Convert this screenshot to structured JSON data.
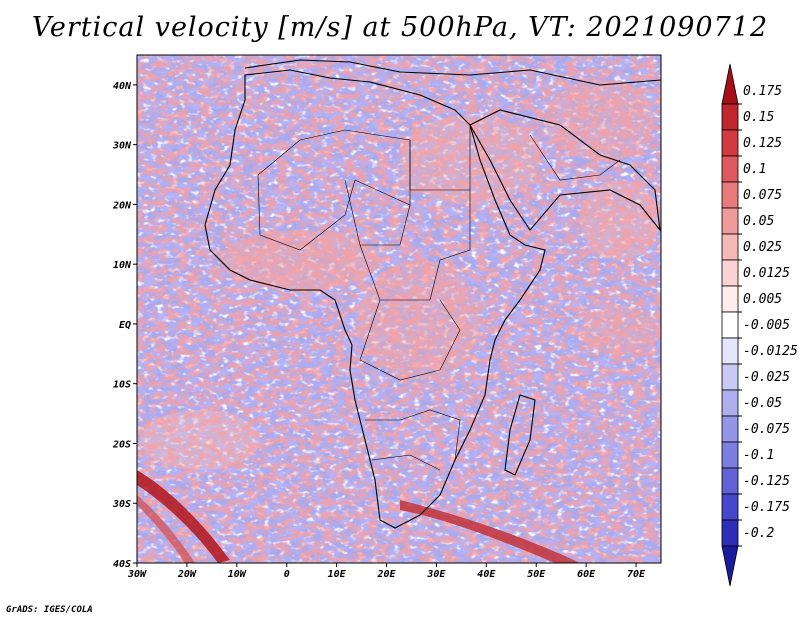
{
  "title": "Vertical velocity [m/s] at 500hPa, VT: 2021090712",
  "credit": "GrADS: IGES/COLA",
  "map": {
    "lon_range": [
      -30,
      75
    ],
    "lat_range": [
      -40,
      45
    ],
    "lon_ticks": [
      "30W",
      "20W",
      "10W",
      "0",
      "10E",
      "20E",
      "30E",
      "40E",
      "50E",
      "60E",
      "70E"
    ],
    "lat_ticks": [
      "40N",
      "30N",
      "20N",
      "10N",
      "EQ",
      "10S",
      "20S",
      "30S",
      "40S"
    ],
    "units": "m/s",
    "variable": "vertical velocity at 500hPa"
  },
  "colorbar": {
    "labels": [
      "0.175",
      "0.15",
      "0.125",
      "0.1",
      "0.075",
      "0.05",
      "0.025",
      "0.0125",
      "0.005",
      "-0.005",
      "-0.0125",
      "-0.025",
      "-0.05",
      "-0.075",
      "-0.1",
      "-0.125",
      "-0.175",
      "-0.2"
    ],
    "colors": [
      "#a50f15",
      "#c0262d",
      "#d23a3f",
      "#df5a5e",
      "#e87a7c",
      "#ef9a9b",
      "#f5b8b9",
      "#fad4d4",
      "#fdecec",
      "#ffffff",
      "#e6e6fa",
      "#c9c9f3",
      "#aeaeed",
      "#9595e6",
      "#7d7de0",
      "#6262d6",
      "#4747cc",
      "#2d2db8",
      "#1b1b9e"
    ]
  }
}
